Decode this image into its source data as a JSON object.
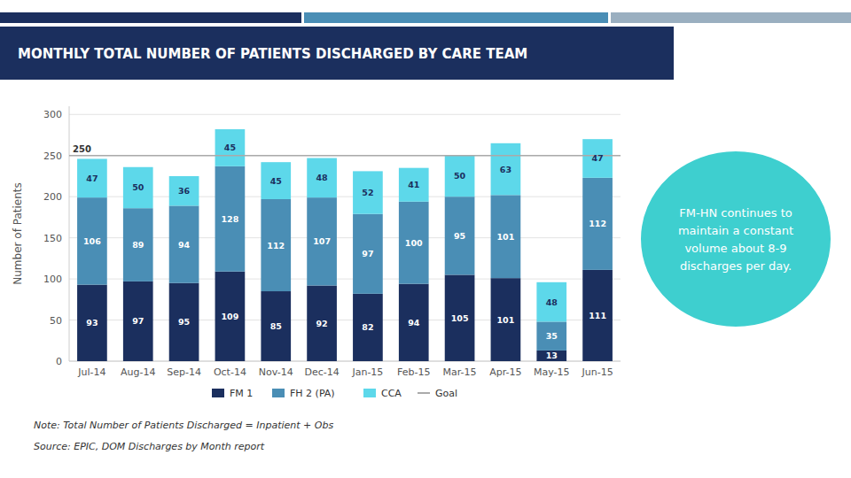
{
  "chart_data": {
    "type": "bar",
    "title": "MONTHLY TOTAL NUMBER OF PATIENTS DISCHARGED BY CARE TEAM",
    "y_label": "Number of Patients",
    "categories": [
      "Jul-14",
      "Aug-14",
      "Sep-14",
      "Oct-14",
      "Nov-14",
      "Dec-14",
      "Jan-15",
      "Feb-15",
      "Mar-15",
      "Apr-15",
      "May-15",
      "Jun-15"
    ],
    "series": [
      {
        "name": "FM 1",
        "color": "#1b2f5e",
        "values": [
          93,
          97,
          95,
          109,
          85,
          92,
          82,
          94,
          105,
          101,
          13,
          111
        ]
      },
      {
        "name": "FH 2 (PA)",
        "color": "#4a8eb5",
        "values": [
          106,
          89,
          94,
          128,
          112,
          107,
          97,
          100,
          95,
          101,
          35,
          112
        ]
      },
      {
        "name": "CCA",
        "color": "#5dd8ea",
        "values": [
          47,
          50,
          36,
          45,
          45,
          48,
          52,
          41,
          50,
          63,
          48,
          47
        ]
      }
    ],
    "reference_lines": [
      {
        "name": "Goal",
        "value": 250,
        "color": "#aaaaaa"
      }
    ],
    "stacked": true,
    "data_labels": true,
    "grid": true,
    "legend": "bottom",
    "ylim": [
      0,
      310
    ],
    "yticks": [
      0,
      50,
      100,
      150,
      200,
      250,
      300
    ],
    "notes": [
      "Note: Total Number of Patients Discharged = Inpatient + Obs",
      "Source: EPIC, DOM Discharges by Month report"
    ],
    "annotations": [
      "FM-HN continues to\nmaintain a constant\nvolume about 8-9\ndischarges per day."
    ]
  }
}
